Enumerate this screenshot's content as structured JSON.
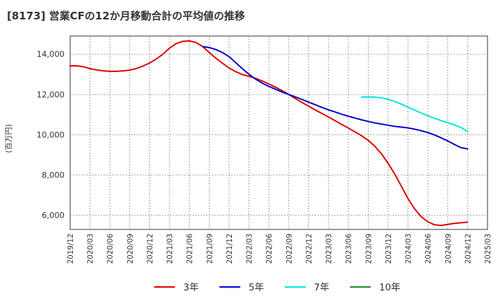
{
  "chart_data": {
    "type": "line",
    "title": "[8173]  営業CFの12か月移動合計の平均値の推移",
    "ylabel": "(百万円)",
    "xlabel": "",
    "ylim": [
      5300,
      14900
    ],
    "yticks": [
      6000,
      8000,
      10000,
      12000,
      14000
    ],
    "ytick_labels": [
      "6,000",
      "8,000",
      "10,000",
      "12,000",
      "14,000"
    ],
    "xticks": [
      "2019/12",
      "2020/03",
      "2020/06",
      "2020/09",
      "2020/12",
      "2021/03",
      "2021/06",
      "2021/09",
      "2021/12",
      "2022/03",
      "2022/06",
      "2022/09",
      "2022/12",
      "2023/03",
      "2023/06",
      "2023/09",
      "2023/12",
      "2024/03",
      "2024/06",
      "2024/09",
      "2024/12",
      "2025/03"
    ],
    "grid": true,
    "legend_position": "bottom",
    "series": [
      {
        "name": "3年",
        "color": "#dd0000",
        "x": [
          "2019/12",
          "2020/01",
          "2020/02",
          "2020/03",
          "2020/04",
          "2020/05",
          "2020/06",
          "2020/07",
          "2020/08",
          "2020/09",
          "2020/10",
          "2020/11",
          "2020/12",
          "2021/01",
          "2021/02",
          "2021/03",
          "2021/04",
          "2021/05",
          "2021/06",
          "2021/07",
          "2021/08",
          "2021/09",
          "2021/10",
          "2021/11",
          "2021/12",
          "2022/01",
          "2022/02",
          "2022/03",
          "2022/04",
          "2022/05",
          "2022/06",
          "2022/07",
          "2022/08",
          "2022/09",
          "2022/10",
          "2022/11",
          "2022/12",
          "2023/01",
          "2023/02",
          "2023/03",
          "2023/04",
          "2023/05",
          "2023/06",
          "2023/07",
          "2023/08",
          "2023/09",
          "2023/10",
          "2023/11",
          "2023/12",
          "2024/01",
          "2024/02",
          "2024/03",
          "2024/04",
          "2024/05",
          "2024/06",
          "2024/07",
          "2024/08",
          "2024/09",
          "2024/10",
          "2024/11",
          "2024/12"
        ],
        "values": [
          13420,
          13420,
          13380,
          13280,
          13220,
          13170,
          13150,
          13150,
          13170,
          13210,
          13290,
          13410,
          13560,
          13760,
          14000,
          14300,
          14520,
          14640,
          14660,
          14580,
          14380,
          14080,
          13800,
          13550,
          13310,
          13130,
          12990,
          12900,
          12800,
          12670,
          12520,
          12360,
          12190,
          12000,
          11800,
          11600,
          11420,
          11230,
          11060,
          10880,
          10700,
          10510,
          10330,
          10140,
          9950,
          9720,
          9430,
          9050,
          8580,
          8050,
          7440,
          6830,
          6320,
          5930,
          5680,
          5530,
          5500,
          5550,
          5600,
          5630,
          5660
        ]
      },
      {
        "name": "5年",
        "color": "#0000cc",
        "x": [
          "2021/08",
          "2021/09",
          "2021/10",
          "2021/11",
          "2021/12",
          "2022/01",
          "2022/02",
          "2022/03",
          "2022/04",
          "2022/05",
          "2022/06",
          "2022/07",
          "2022/08",
          "2022/09",
          "2022/10",
          "2022/11",
          "2022/12",
          "2023/01",
          "2023/02",
          "2023/03",
          "2023/04",
          "2023/05",
          "2023/06",
          "2023/07",
          "2023/08",
          "2023/09",
          "2023/10",
          "2023/11",
          "2023/12",
          "2024/01",
          "2024/02",
          "2024/03",
          "2024/04",
          "2024/05",
          "2024/06",
          "2024/07",
          "2024/08",
          "2024/09",
          "2024/10",
          "2024/11",
          "2024/12"
        ],
        "values": [
          14380,
          14330,
          14230,
          14080,
          13870,
          13580,
          13280,
          13000,
          12760,
          12560,
          12400,
          12260,
          12120,
          12000,
          11880,
          11750,
          11620,
          11490,
          11360,
          11240,
          11130,
          11020,
          10920,
          10830,
          10740,
          10660,
          10590,
          10530,
          10470,
          10420,
          10380,
          10340,
          10280,
          10200,
          10110,
          9990,
          9850,
          9690,
          9520,
          9360,
          9300
        ]
      },
      {
        "name": "7年",
        "color": "#00e5e5",
        "x": [
          "2023/08",
          "2023/09",
          "2023/10",
          "2023/11",
          "2023/12",
          "2024/01",
          "2024/02",
          "2024/03",
          "2024/04",
          "2024/05",
          "2024/06",
          "2024/07",
          "2024/08",
          "2024/09",
          "2024/10",
          "2024/11",
          "2024/12"
        ],
        "values": [
          11860,
          11880,
          11870,
          11830,
          11760,
          11660,
          11520,
          11370,
          11220,
          11080,
          10940,
          10820,
          10700,
          10600,
          10490,
          10360,
          10160
        ]
      },
      {
        "name": "10年",
        "color": "#228b22",
        "x": [],
        "values": []
      }
    ]
  }
}
